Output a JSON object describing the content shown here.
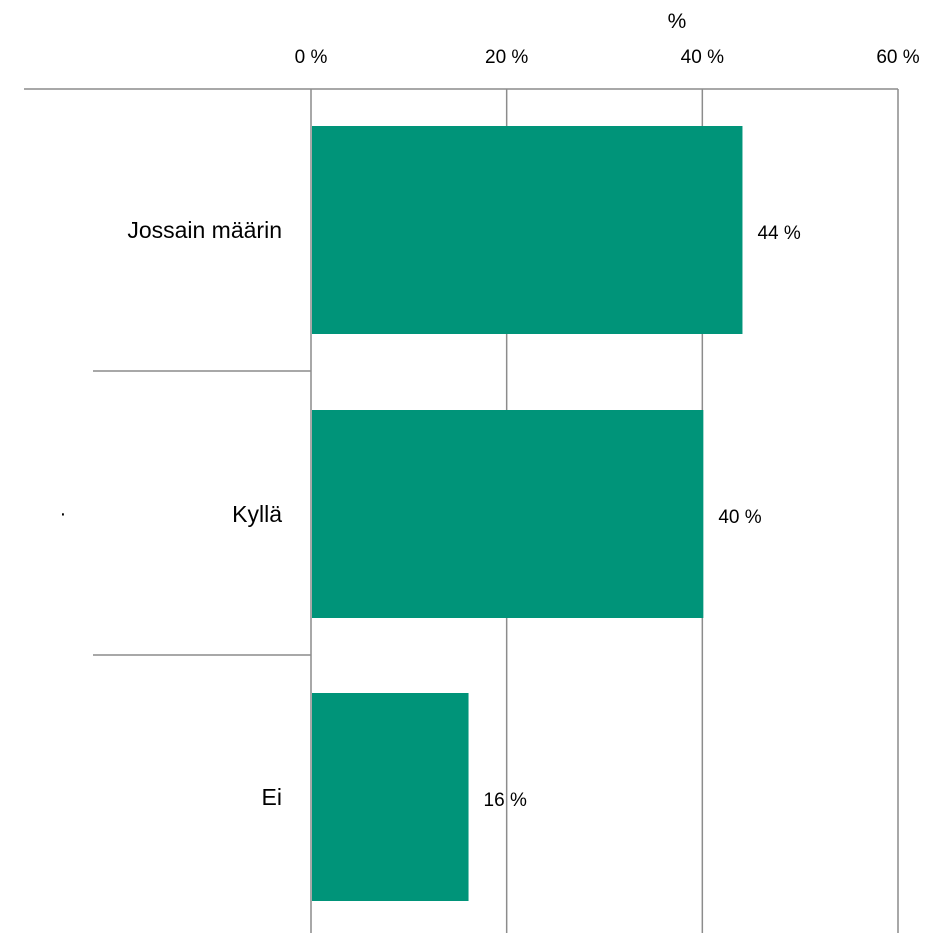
{
  "chart_data": {
    "type": "bar",
    "orientation": "horizontal",
    "x_unit_label": "%",
    "categories": [
      "Jossain määrin",
      "Kyllä",
      "Ei"
    ],
    "values": [
      44,
      40,
      16
    ],
    "data_labels": [
      "44 %",
      "40 %",
      "16 %"
    ],
    "xlim": [
      0,
      60
    ],
    "x_ticks": [
      0,
      20,
      40,
      60
    ],
    "x_tick_labels": [
      "0 %",
      "20 %",
      "40 %",
      "60 %"
    ],
    "axis_position": "top",
    "grid": true,
    "colors": {
      "bar": "#009479",
      "grid": "#8c8c8c"
    }
  }
}
